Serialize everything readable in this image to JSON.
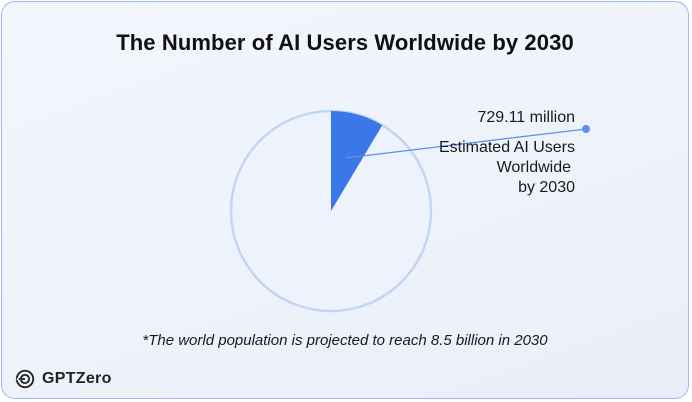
{
  "chart_data": {
    "type": "pie",
    "title": "The Number of AI Users Worldwide by 2030",
    "slices": [
      {
        "label": "Estimated AI Users Worldwide by 2030",
        "value": 729.11,
        "color": "#3a78e8"
      },
      {
        "label": "",
        "value": 7770.89,
        "color": "#edf2fc"
      }
    ],
    "total": 8500,
    "unit": "million",
    "annotation": {
      "value_text": "729.11 million",
      "desc_lines": [
        "Estimated AI Users",
        "Worldwide",
        "by 2030"
      ]
    },
    "footnote": "*The world population is projected to reach 8.5 billion in 2030",
    "ring_color": "#c3d5f5",
    "leader_color": "#5b8ff0"
  },
  "brand": {
    "name": "GPTZero",
    "icon": "gptzero-logo-icon"
  }
}
